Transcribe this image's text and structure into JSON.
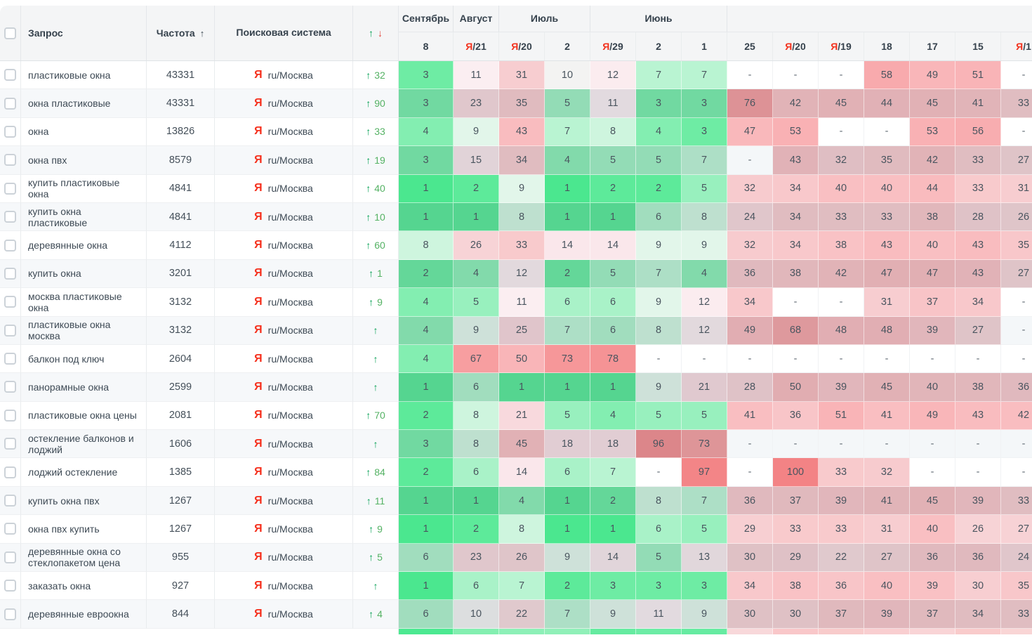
{
  "header": {
    "query_label": "Запрос",
    "frequency_label": "Частота",
    "sort_arrow": "↑",
    "engine_label": "Поисковая система",
    "change_up": "↑",
    "change_down": "↓"
  },
  "month_groups": [
    {
      "label": "Сентябрь",
      "span": 1
    },
    {
      "label": "Август",
      "span": 1
    },
    {
      "label": "Июль",
      "span": 2
    },
    {
      "label": "Июнь",
      "span": 3
    },
    {
      "label": "",
      "span": 7
    }
  ],
  "date_columns": [
    {
      "label": "8",
      "yandex": false
    },
    {
      "label": "21",
      "yandex": true
    },
    {
      "label": "20",
      "yandex": true
    },
    {
      "label": "2",
      "yandex": false
    },
    {
      "label": "29",
      "yandex": true
    },
    {
      "label": "2",
      "yandex": false
    },
    {
      "label": "1",
      "yandex": false
    },
    {
      "label": "25",
      "yandex": false
    },
    {
      "label": "20",
      "yandex": true
    },
    {
      "label": "19",
      "yandex": true
    },
    {
      "label": "18",
      "yandex": false
    },
    {
      "label": "17",
      "yandex": false
    },
    {
      "label": "15",
      "yandex": false
    },
    {
      "label": "1",
      "yandex": true
    }
  ],
  "rows": [
    {
      "query": "пластиковые окна",
      "frequency": "43331",
      "engine_icon": "Я",
      "engine_region": "ru/Москва",
      "change_dir": "up",
      "change_value": "32",
      "positions": [
        "3",
        "11",
        "31",
        "10",
        "12",
        "7",
        "7",
        "-",
        "-",
        "-",
        "58",
        "49",
        "51",
        "-"
      ]
    },
    {
      "query": "окна пластиковые",
      "frequency": "43331",
      "engine_icon": "Я",
      "engine_region": "ru/Москва",
      "change_dir": "up",
      "change_value": "90",
      "positions": [
        "3",
        "23",
        "35",
        "5",
        "11",
        "3",
        "3",
        "76",
        "42",
        "45",
        "44",
        "45",
        "41",
        "33"
      ]
    },
    {
      "query": "окна",
      "frequency": "13826",
      "engine_icon": "Я",
      "engine_region": "ru/Москва",
      "change_dir": "up",
      "change_value": "33",
      "positions": [
        "4",
        "9",
        "43",
        "7",
        "8",
        "4",
        "3",
        "47",
        "53",
        "-",
        "-",
        "53",
        "56",
        "-"
      ]
    },
    {
      "query": "окна пвх",
      "frequency": "8579",
      "engine_icon": "Я",
      "engine_region": "ru/Москва",
      "change_dir": "up",
      "change_value": "19",
      "positions": [
        "3",
        "15",
        "34",
        "4",
        "5",
        "5",
        "7",
        "-",
        "43",
        "32",
        "35",
        "42",
        "33",
        "27"
      ]
    },
    {
      "query": "купить пластиковые окна",
      "frequency": "4841",
      "engine_icon": "Я",
      "engine_region": "ru/Москва",
      "change_dir": "up",
      "change_value": "40",
      "positions": [
        "1",
        "2",
        "9",
        "1",
        "2",
        "2",
        "5",
        "32",
        "34",
        "40",
        "40",
        "44",
        "33",
        "31"
      ]
    },
    {
      "query": "купить окна пластиковые",
      "frequency": "4841",
      "engine_icon": "Я",
      "engine_region": "ru/Москва",
      "change_dir": "up",
      "change_value": "10",
      "positions": [
        "1",
        "1",
        "8",
        "1",
        "1",
        "6",
        "8",
        "24",
        "34",
        "33",
        "33",
        "38",
        "28",
        "26"
      ]
    },
    {
      "query": "деревянные окна",
      "frequency": "4112",
      "engine_icon": "Я",
      "engine_region": "ru/Москва",
      "change_dir": "up",
      "change_value": "60",
      "positions": [
        "8",
        "26",
        "33",
        "14",
        "14",
        "9",
        "9",
        "32",
        "34",
        "38",
        "43",
        "40",
        "43",
        "35"
      ]
    },
    {
      "query": "купить окна",
      "frequency": "3201",
      "engine_icon": "Я",
      "engine_region": "ru/Москва",
      "change_dir": "up",
      "change_value": "1",
      "positions": [
        "2",
        "4",
        "12",
        "2",
        "5",
        "7",
        "4",
        "36",
        "38",
        "42",
        "47",
        "47",
        "43",
        "27"
      ]
    },
    {
      "query": "москва пластиковые окна",
      "frequency": "3132",
      "engine_icon": "Я",
      "engine_region": "ru/Москва",
      "change_dir": "up",
      "change_value": "9",
      "positions": [
        "4",
        "5",
        "11",
        "6",
        "6",
        "9",
        "12",
        "34",
        "-",
        "-",
        "31",
        "37",
        "34",
        "-"
      ]
    },
    {
      "query": "пластиковые окна москва",
      "frequency": "3132",
      "engine_icon": "Я",
      "engine_region": "ru/Москва",
      "change_dir": "up",
      "change_value": "",
      "positions": [
        "4",
        "9",
        "25",
        "7",
        "6",
        "8",
        "12",
        "49",
        "68",
        "48",
        "48",
        "39",
        "27",
        "-"
      ]
    },
    {
      "query": "балкон под ключ",
      "frequency": "2604",
      "engine_icon": "Я",
      "engine_region": "ru/Москва",
      "change_dir": "up",
      "change_value": "",
      "positions": [
        "4",
        "67",
        "50",
        "73",
        "78",
        "-",
        "-",
        "-",
        "-",
        "-",
        "-",
        "-",
        "-",
        "-"
      ]
    },
    {
      "query": "панорамные окна",
      "frequency": "2599",
      "engine_icon": "Я",
      "engine_region": "ru/Москва",
      "change_dir": "up",
      "change_value": "",
      "positions": [
        "1",
        "6",
        "1",
        "1",
        "1",
        "9",
        "21",
        "28",
        "50",
        "39",
        "45",
        "40",
        "38",
        "36"
      ]
    },
    {
      "query": "пластиковые окна цены",
      "frequency": "2081",
      "engine_icon": "Я",
      "engine_region": "ru/Москва",
      "change_dir": "up",
      "change_value": "70",
      "positions": [
        "2",
        "8",
        "21",
        "5",
        "4",
        "5",
        "5",
        "41",
        "36",
        "51",
        "41",
        "49",
        "43",
        "42"
      ]
    },
    {
      "query": "остекление балконов и лоджий",
      "frequency": "1606",
      "engine_icon": "Я",
      "engine_region": "ru/Москва",
      "change_dir": "up",
      "change_value": "",
      "positions": [
        "3",
        "8",
        "45",
        "18",
        "18",
        "96",
        "73",
        "-",
        "-",
        "-",
        "-",
        "-",
        "-",
        "-"
      ]
    },
    {
      "query": "лоджий остекление",
      "frequency": "1385",
      "engine_icon": "Я",
      "engine_region": "ru/Москва",
      "change_dir": "up",
      "change_value": "84",
      "positions": [
        "2",
        "6",
        "14",
        "6",
        "7",
        "-",
        "97",
        "-",
        "100",
        "33",
        "32",
        "-",
        "-",
        "-"
      ]
    },
    {
      "query": "купить окна пвх",
      "frequency": "1267",
      "engine_icon": "Я",
      "engine_region": "ru/Москва",
      "change_dir": "up",
      "change_value": "11",
      "positions": [
        "1",
        "1",
        "4",
        "1",
        "2",
        "8",
        "7",
        "36",
        "37",
        "39",
        "41",
        "45",
        "39",
        "33"
      ]
    },
    {
      "query": "окна пвх купить",
      "frequency": "1267",
      "engine_icon": "Я",
      "engine_region": "ru/Москва",
      "change_dir": "up",
      "change_value": "9",
      "positions": [
        "1",
        "2",
        "8",
        "1",
        "1",
        "6",
        "5",
        "29",
        "33",
        "33",
        "31",
        "40",
        "26",
        "27"
      ]
    },
    {
      "query": "деревянные окна со стеклопакетом цена",
      "frequency": "955",
      "engine_icon": "Я",
      "engine_region": "ru/Москва",
      "change_dir": "up",
      "change_value": "5",
      "positions": [
        "6",
        "23",
        "26",
        "9",
        "14",
        "5",
        "13",
        "30",
        "29",
        "22",
        "27",
        "36",
        "36",
        "24"
      ]
    },
    {
      "query": "заказать окна",
      "frequency": "927",
      "engine_icon": "Я",
      "engine_region": "ru/Москва",
      "change_dir": "up",
      "change_value": "",
      "positions": [
        "1",
        "6",
        "7",
        "2",
        "3",
        "3",
        "3",
        "34",
        "38",
        "36",
        "40",
        "39",
        "30",
        "35"
      ]
    },
    {
      "query": "деревянные евроокна",
      "frequency": "844",
      "engine_icon": "Я",
      "engine_region": "ru/Москва",
      "change_dir": "up",
      "change_value": "4",
      "positions": [
        "6",
        "10",
        "22",
        "7",
        "9",
        "11",
        "9",
        "30",
        "30",
        "37",
        "39",
        "37",
        "34",
        "33"
      ]
    }
  ],
  "partial_row_colors": [
    "#4ce991",
    "#83efb0",
    "#8df0b7",
    "#90f0b8",
    "#65eba0",
    "#6cecа5",
    "#66eba1",
    "#f8d8da",
    "#f9c7c9",
    "#f8cbcb",
    "#f9ced0",
    "#f9d4d6",
    "#f9cbcb",
    "#f9d5d5"
  ],
  "colors": {
    "header_bg": "#f4f5f6",
    "accent_green": "#0aa257",
    "accent_red": "#e2453d",
    "yandex_red": "#f5301d",
    "stripe_left_bg": "#f6f8fa",
    "stripe_tint": "#7f8b95",
    "dash_bg": "#ffffff",
    "dash_bg_striped": "#f4f7f9",
    "heat_anchors": {
      "1": "#4be78f",
      "3": "#6eeca4",
      "5": "#98f0be",
      "7": "#b9f4d2",
      "9": "#e2f6ea",
      "10": "#f3f3f2",
      "11": "#fbeef1",
      "20": "#f8dade",
      "30": "#f7ced1",
      "40": "#f9bfc2",
      "50": "#f9b5b8",
      "60": "#f8a7aa",
      "70": "#f69a9c",
      "85": "#f48c8e",
      "100": "#f38385"
    }
  }
}
